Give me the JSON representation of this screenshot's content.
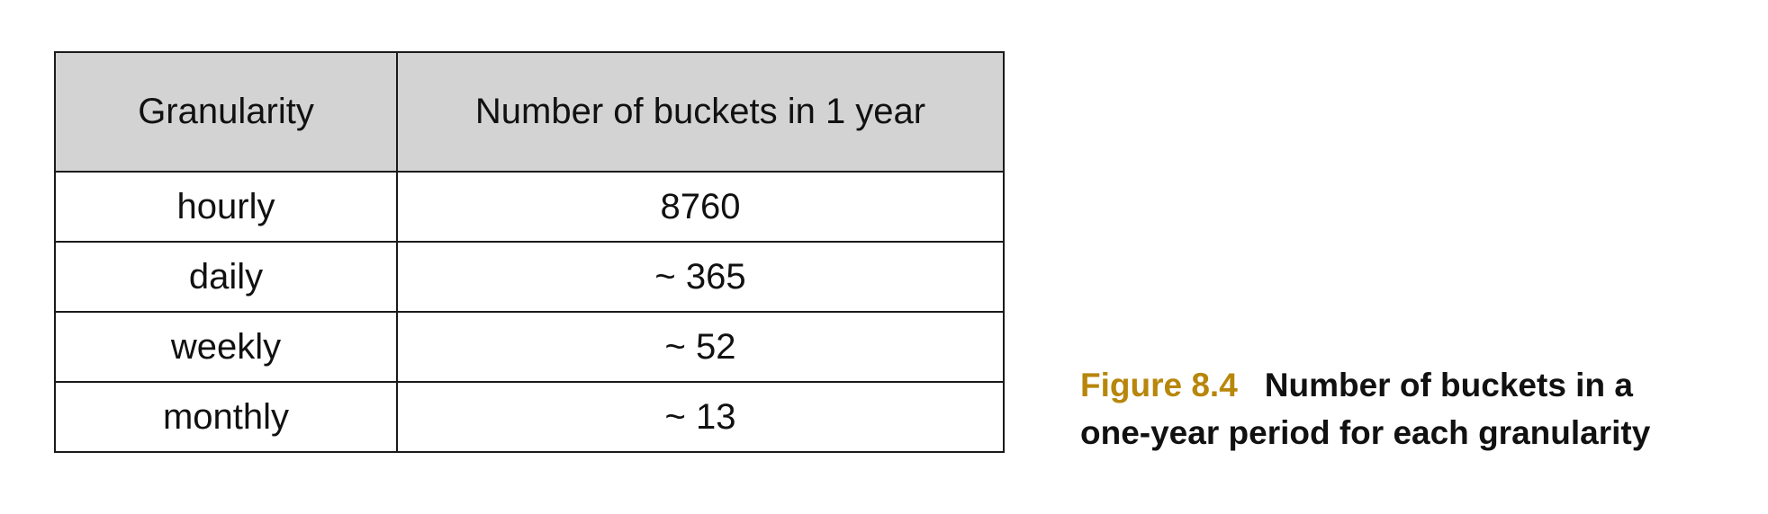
{
  "table": {
    "headers": [
      "Granularity",
      "Number of buckets in 1 year"
    ],
    "rows": [
      [
        "hourly",
        "8760"
      ],
      [
        "daily",
        "~ 365"
      ],
      [
        "weekly",
        "~ 52"
      ],
      [
        "monthly",
        "~ 13"
      ]
    ]
  },
  "caption": {
    "label": "Figure 8.4",
    "line1": "Number of buckets in a",
    "line2": "one-year period for each granularity"
  },
  "colors": {
    "header_background": "#d3d3d3",
    "caption_label": "#b8860b",
    "border": "#1a1a1a"
  }
}
